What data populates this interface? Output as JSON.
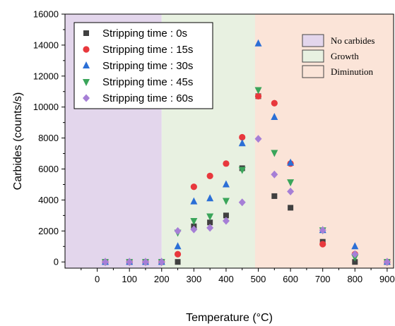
{
  "chart_data": {
    "type": "scatter",
    "title": "",
    "xlabel": "Temperature (°C)",
    "ylabel": "Carbides (counts/s)",
    "xlim": [
      -100,
      920
    ],
    "ylim": [
      -400,
      16000
    ],
    "xticks": [
      0,
      100,
      200,
      300,
      400,
      500,
      600,
      700,
      800,
      900
    ],
    "yticks": [
      0,
      2000,
      4000,
      6000,
      8000,
      10000,
      12000,
      14000,
      16000
    ],
    "regions": [
      {
        "name": "No carbides",
        "from": -100,
        "to": 200,
        "color": "#e3d6ec"
      },
      {
        "name": "Growth",
        "from": 200,
        "to": 490,
        "color": "#e8f1e1"
      },
      {
        "name": "Diminution",
        "from": 490,
        "to": 920,
        "color": "#fbe4d8"
      }
    ],
    "series": [
      {
        "name": "Stripping time : 0s",
        "marker": "square",
        "color": "#404040",
        "points": [
          [
            25,
            0
          ],
          [
            100,
            0
          ],
          [
            150,
            0
          ],
          [
            200,
            0
          ],
          [
            250,
            0
          ],
          [
            300,
            2300
          ],
          [
            350,
            2550
          ],
          [
            400,
            3000
          ],
          [
            450,
            6050
          ],
          [
            500,
            10700
          ],
          [
            550,
            4250
          ],
          [
            600,
            3500
          ],
          [
            700,
            1300
          ],
          [
            800,
            0
          ],
          [
            900,
            0
          ]
        ]
      },
      {
        "name": "Stripping time : 15s",
        "marker": "circle",
        "color": "#e8383d",
        "points": [
          [
            25,
            0
          ],
          [
            100,
            0
          ],
          [
            150,
            0
          ],
          [
            200,
            0
          ],
          [
            250,
            500
          ],
          [
            300,
            4850
          ],
          [
            350,
            5550
          ],
          [
            400,
            6350
          ],
          [
            450,
            8050
          ],
          [
            500,
            10700
          ],
          [
            550,
            10250
          ],
          [
            600,
            6350
          ],
          [
            700,
            1150
          ],
          [
            800,
            500
          ],
          [
            900,
            0
          ]
        ]
      },
      {
        "name": "Stripping time : 30s",
        "marker": "triangle-up",
        "color": "#2b6fd6",
        "points": [
          [
            25,
            0
          ],
          [
            100,
            0
          ],
          [
            150,
            0
          ],
          [
            200,
            0
          ],
          [
            250,
            1000
          ],
          [
            300,
            3900
          ],
          [
            350,
            4100
          ],
          [
            400,
            5000
          ],
          [
            450,
            7650
          ],
          [
            500,
            14100
          ],
          [
            550,
            9350
          ],
          [
            600,
            6400
          ],
          [
            700,
            2050
          ],
          [
            800,
            1000
          ],
          [
            900,
            0
          ]
        ]
      },
      {
        "name": "Stripping time : 45s",
        "marker": "triangle-down",
        "color": "#3aa55a",
        "points": [
          [
            25,
            0
          ],
          [
            100,
            0
          ],
          [
            150,
            0
          ],
          [
            200,
            0
          ],
          [
            250,
            1900
          ],
          [
            300,
            2650
          ],
          [
            350,
            2950
          ],
          [
            400,
            3950
          ],
          [
            450,
            5950
          ],
          [
            500,
            11100
          ],
          [
            550,
            7050
          ],
          [
            600,
            5150
          ],
          [
            700,
            2050
          ],
          [
            800,
            300
          ],
          [
            900,
            0
          ]
        ]
      },
      {
        "name": "Stripping time : 60s",
        "marker": "diamond",
        "color": "#a67fd6",
        "points": [
          [
            25,
            0
          ],
          [
            100,
            0
          ],
          [
            150,
            0
          ],
          [
            200,
            0
          ],
          [
            250,
            2000
          ],
          [
            300,
            2100
          ],
          [
            350,
            2200
          ],
          [
            400,
            2650
          ],
          [
            450,
            3850
          ],
          [
            500,
            7950
          ],
          [
            550,
            5650
          ],
          [
            600,
            4550
          ],
          [
            700,
            2050
          ],
          [
            800,
            500
          ],
          [
            900,
            0
          ]
        ]
      }
    ]
  }
}
